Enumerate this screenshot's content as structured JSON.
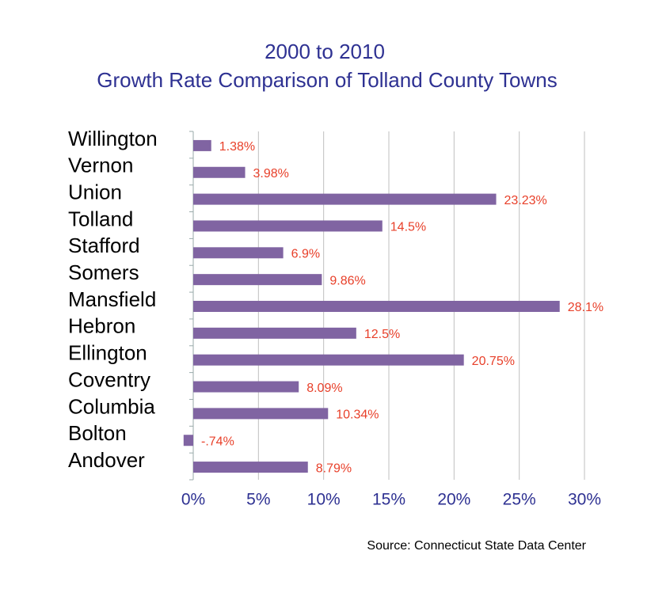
{
  "chart_data": {
    "type": "bar",
    "orientation": "horizontal",
    "title": "2000 to 2010",
    "subtitle": "Growth Rate Comparison of Tolland County Towns",
    "categories": [
      "Willington",
      "Vernon",
      "Union",
      "Tolland",
      "Stafford",
      "Somers",
      "Mansfield",
      "Hebron",
      "Ellington",
      "Coventry",
      "Columbia",
      "Bolton",
      "Andover"
    ],
    "values": [
      1.38,
      3.98,
      23.23,
      14.5,
      6.9,
      9.86,
      28.1,
      12.5,
      20.75,
      8.09,
      10.34,
      -0.74,
      8.79
    ],
    "value_labels": [
      "1.38%",
      "3.98%",
      "23.23%",
      "14.5%",
      "6.9%",
      "9.86%",
      "28.1%",
      "12.5%",
      "20.75%",
      "8.09%",
      "10.34%",
      "-.74%",
      "8.79%"
    ],
    "color": "#8064a2",
    "xlim": [
      0,
      30
    ],
    "xticks": [
      {
        "value": 0,
        "label": "0%"
      },
      {
        "value": 5,
        "label": "5%"
      },
      {
        "value": 10,
        "label": "10%"
      },
      {
        "value": 15,
        "label": "15%"
      },
      {
        "value": 20,
        "label": "20%"
      },
      {
        "value": 25,
        "label": "25%"
      },
      {
        "value": 30,
        "label": "30%"
      }
    ],
    "grid": true,
    "source": "Source: Connecticut State Data Center"
  }
}
